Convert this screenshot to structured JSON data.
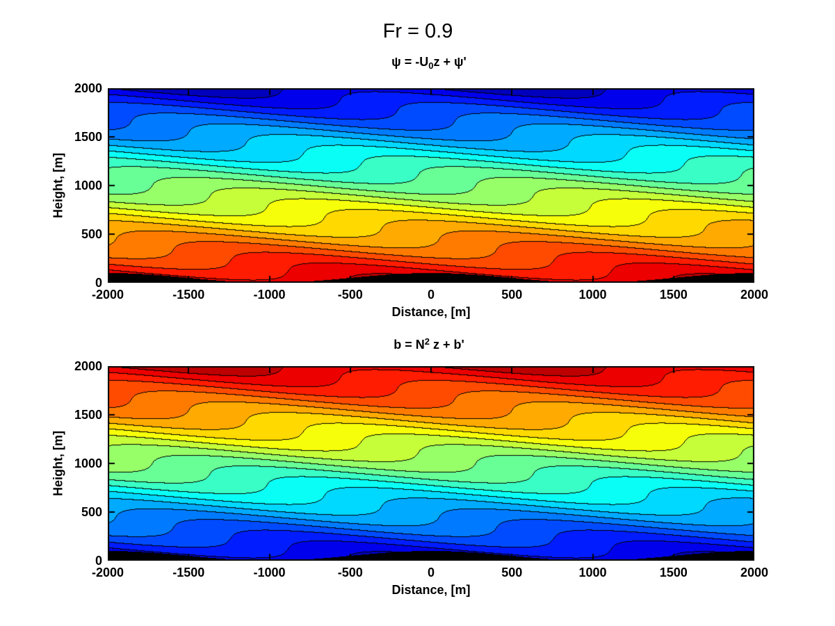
{
  "figure": {
    "title": "Fr = 0.9",
    "background_color": "#ffffff",
    "text_color": "#000000"
  },
  "chart_data": [
    {
      "id": "streamfunction",
      "type": "filled_contour",
      "title": {
        "pre": "ψ = -U",
        "sub": "0",
        "post": "z + ψ'"
      },
      "xlabel": "Distance, [m]",
      "ylabel": "Height, [m]",
      "xlim": [
        -2000,
        2000
      ],
      "ylim": [
        0,
        2000
      ],
      "xticks": [
        -2000,
        -1500,
        -1000,
        -500,
        0,
        500,
        1000,
        1500,
        2000
      ],
      "xtick_labels": [
        "-2000",
        "-1500",
        "-1000",
        "-500",
        "0",
        "500",
        "1000",
        "1500",
        "2000"
      ],
      "yticks": [
        0,
        500,
        1000,
        1500,
        2000
      ],
      "ytick_labels": [
        "0",
        "500",
        "1000",
        "1500",
        "2000"
      ],
      "colormap": "jet",
      "jet_t_range": [
        0.06,
        0.94
      ],
      "n_bands": 20,
      "value_orientation": "decreases_with_height",
      "contour_line_color": "#000000",
      "field": {
        "description": "F(x,z) = (z - δ)/H, δ = A cos(2πx/λx + 2πz/λz); mountain-wave displaced streamfunction, high values (red) at ground, low (blue) aloft",
        "amplitude_m": 88,
        "lambda_x_m": 2000,
        "lambda_z_m": 620,
        "normalize_m": 2000,
        "level_min": -0.05,
        "level_step": 0.055
      },
      "terrain": {
        "description": "h(x) = (h0/2)(1 + cos(2πx/λx)), peaks at x = -2000, 0, 2000",
        "h0_m": 100,
        "lambda_x_m": 2000,
        "color": "#000000"
      }
    },
    {
      "id": "buoyancy",
      "type": "filled_contour",
      "title": {
        "pre": "b = N",
        "sup": "2",
        "post": " z + b'"
      },
      "xlabel": "Distance, [m]",
      "ylabel": "Height, [m]",
      "xlim": [
        -2000,
        2000
      ],
      "ylim": [
        0,
        2000
      ],
      "xticks": [
        -2000,
        -1500,
        -1000,
        -500,
        0,
        500,
        1000,
        1500,
        2000
      ],
      "xtick_labels": [
        "-2000",
        "-1500",
        "-1000",
        "-500",
        "0",
        "500",
        "1000",
        "1500",
        "2000"
      ],
      "yticks": [
        0,
        500,
        1000,
        1500,
        2000
      ],
      "ytick_labels": [
        "0",
        "500",
        "1000",
        "1500",
        "2000"
      ],
      "colormap": "jet",
      "jet_t_range": [
        0.06,
        0.94
      ],
      "n_bands": 20,
      "value_orientation": "increases_with_height",
      "contour_line_color": "#000000",
      "field": {
        "description": "F(x,z) = (z - δ)/H, δ = A cos(2πx/λx + 2πz/λz); buoyancy field, low values (blue) at ground, high (red) aloft",
        "amplitude_m": 88,
        "lambda_x_m": 2000,
        "lambda_z_m": 620,
        "normalize_m": 2000,
        "level_min": -0.05,
        "level_step": 0.055
      },
      "terrain": {
        "description": "h(x) = (h0/2)(1 + cos(2πx/λx)), peaks at x = -2000, 0, 2000",
        "h0_m": 100,
        "lambda_x_m": 2000,
        "color": "#000000"
      }
    }
  ]
}
